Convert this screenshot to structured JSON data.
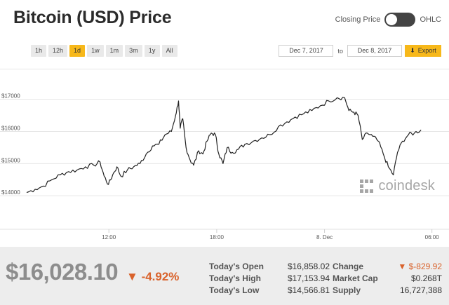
{
  "header": {
    "title": "Bitcoin (USD) Price",
    "toggle_left": "Closing Price",
    "toggle_right": "OHLC"
  },
  "ranges": [
    "1h",
    "12h",
    "1d",
    "1w",
    "1m",
    "3m",
    "1y",
    "All"
  ],
  "active_range": "1d",
  "date_range": {
    "from": "Dec 7, 2017",
    "to_label": "to",
    "to": "Dec 8, 2017",
    "export_label": "Export"
  },
  "brand": "coindesk",
  "colors": {
    "accent": "#f7b81a",
    "negative": "#d9622b",
    "line": "#222222"
  },
  "chart_data": {
    "type": "line",
    "ylim": [
      13000,
      17800
    ],
    "yticks": [
      14000,
      15000,
      16000,
      17000
    ],
    "ytick_labels": [
      "$14000",
      "$15000",
      "$16000",
      "$17000"
    ],
    "xticks": [
      {
        "label": "12:00",
        "pos": 0.196
      },
      {
        "label": "18:00",
        "pos": 0.453
      },
      {
        "label": "8. Dec",
        "pos": 0.71
      },
      {
        "label": "06:00",
        "pos": 0.966
      }
    ],
    "grid": true,
    "series": [
      {
        "values": [
          [
            0.0,
            14100
          ],
          [
            0.02,
            14200
          ],
          [
            0.04,
            14300
          ],
          [
            0.06,
            14500
          ],
          [
            0.08,
            14650
          ],
          [
            0.1,
            14750
          ],
          [
            0.12,
            14800
          ],
          [
            0.14,
            14900
          ],
          [
            0.16,
            14950
          ],
          [
            0.175,
            15050
          ],
          [
            0.185,
            14600
          ],
          [
            0.195,
            14350
          ],
          [
            0.205,
            14650
          ],
          [
            0.215,
            14900
          ],
          [
            0.225,
            14600
          ],
          [
            0.24,
            14800
          ],
          [
            0.255,
            14900
          ],
          [
            0.27,
            15000
          ],
          [
            0.285,
            15300
          ],
          [
            0.3,
            15550
          ],
          [
            0.315,
            15600
          ],
          [
            0.33,
            15900
          ],
          [
            0.345,
            16000
          ],
          [
            0.355,
            16500
          ],
          [
            0.362,
            16950
          ],
          [
            0.366,
            16100
          ],
          [
            0.372,
            16400
          ],
          [
            0.38,
            15500
          ],
          [
            0.39,
            15100
          ],
          [
            0.398,
            14950
          ],
          [
            0.41,
            15400
          ],
          [
            0.42,
            15300
          ],
          [
            0.43,
            15700
          ],
          [
            0.44,
            15950
          ],
          [
            0.45,
            15900
          ],
          [
            0.458,
            15300
          ],
          [
            0.468,
            15000
          ],
          [
            0.478,
            15500
          ],
          [
            0.49,
            15350
          ],
          [
            0.505,
            15450
          ],
          [
            0.52,
            15600
          ],
          [
            0.54,
            15700
          ],
          [
            0.56,
            15800
          ],
          [
            0.58,
            15900
          ],
          [
            0.6,
            16150
          ],
          [
            0.62,
            16300
          ],
          [
            0.64,
            16450
          ],
          [
            0.66,
            16550
          ],
          [
            0.68,
            16650
          ],
          [
            0.7,
            16800
          ],
          [
            0.72,
            16950
          ],
          [
            0.74,
            17050
          ],
          [
            0.758,
            17050
          ],
          [
            0.768,
            16650
          ],
          [
            0.78,
            16600
          ],
          [
            0.79,
            16500
          ],
          [
            0.8,
            15750
          ],
          [
            0.812,
            15950
          ],
          [
            0.825,
            15850
          ],
          [
            0.838,
            15700
          ],
          [
            0.85,
            15300
          ],
          [
            0.862,
            14900
          ],
          [
            0.874,
            14650
          ],
          [
            0.884,
            15350
          ],
          [
            0.896,
            15700
          ],
          [
            0.91,
            15900
          ],
          [
            0.924,
            15950
          ],
          [
            0.94,
            16050
          ]
        ]
      }
    ]
  },
  "summary": {
    "price": "$16,028.10",
    "change_pct": "-4.92%",
    "open_label": "Today's Open",
    "open_value": "$16,858.02",
    "high_label": "Today's High",
    "high_value": "$17,153.94",
    "low_label": "Today's Low",
    "low_value": "$14,566.81",
    "change_label": "Change",
    "change_value": "$-829.92",
    "mcap_label": "Market Cap",
    "mcap_value": "$0.268T",
    "supply_label": "Supply",
    "supply_value": "16,727,388"
  }
}
